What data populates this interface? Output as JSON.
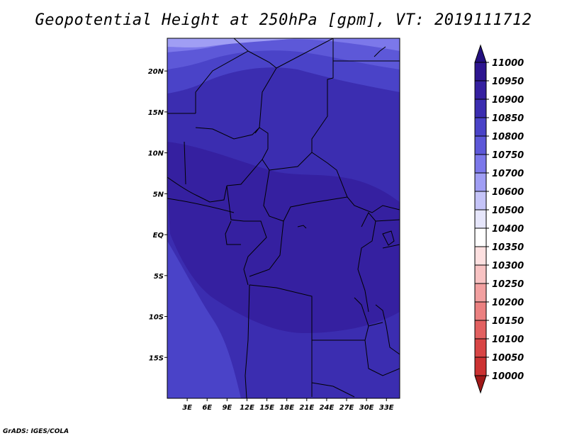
{
  "title": "Geopotential Height at 250hPa [gpm], VT: 2019111712",
  "credit": "GrADS: IGES/COLA",
  "map": {
    "region": "Central Africa",
    "lon_range": [
      0,
      35
    ],
    "lat_range": [
      -20,
      24
    ],
    "lat_ticks": [
      {
        "value": 20,
        "label": "20N"
      },
      {
        "value": 15,
        "label": "15N"
      },
      {
        "value": 10,
        "label": "10N"
      },
      {
        "value": 5,
        "label": "5N"
      },
      {
        "value": 0,
        "label": "EQ"
      },
      {
        "value": -5,
        "label": "5S"
      },
      {
        "value": -10,
        "label": "10S"
      },
      {
        "value": -15,
        "label": "15S"
      }
    ],
    "lon_ticks": [
      {
        "value": 3,
        "label": "3E"
      },
      {
        "value": 6,
        "label": "6E"
      },
      {
        "value": 9,
        "label": "9E"
      },
      {
        "value": 12,
        "label": "12E"
      },
      {
        "value": 15,
        "label": "15E"
      },
      {
        "value": 18,
        "label": "18E"
      },
      {
        "value": 21,
        "label": "21E"
      },
      {
        "value": 24,
        "label": "24E"
      },
      {
        "value": 27,
        "label": "27E"
      },
      {
        "value": 30,
        "label": "30E"
      },
      {
        "value": 33,
        "label": "33E"
      }
    ]
  },
  "colorbar": {
    "levels": [
      {
        "label": "11000",
        "color": "#2d1590"
      },
      {
        "label": "10950",
        "color": "#3520a0"
      },
      {
        "label": "10900",
        "color": "#3b2db0"
      },
      {
        "label": "10850",
        "color": "#4a43c8"
      },
      {
        "label": "10800",
        "color": "#5d58d8"
      },
      {
        "label": "10750",
        "color": "#7c78ea"
      },
      {
        "label": "10700",
        "color": "#a09ef4"
      },
      {
        "label": "10600",
        "color": "#c5c4f8"
      },
      {
        "label": "10500",
        "color": "#e6e6fb"
      },
      {
        "label": "10400",
        "color": "#ffffff"
      },
      {
        "label": "10350",
        "color": "#fde0e0"
      },
      {
        "label": "10300",
        "color": "#f8c3c3"
      },
      {
        "label": "10250",
        "color": "#f2a0a0"
      },
      {
        "label": "10200",
        "color": "#eb8080"
      },
      {
        "label": "10150",
        "color": "#e26060"
      },
      {
        "label": "10100",
        "color": "#d84545"
      },
      {
        "label": "10050",
        "color": "#cc3232"
      },
      {
        "label": "10000",
        "color": "#b62020"
      }
    ],
    "top_arrow_color": "#24107f",
    "bottom_arrow_color": "#a01818"
  }
}
